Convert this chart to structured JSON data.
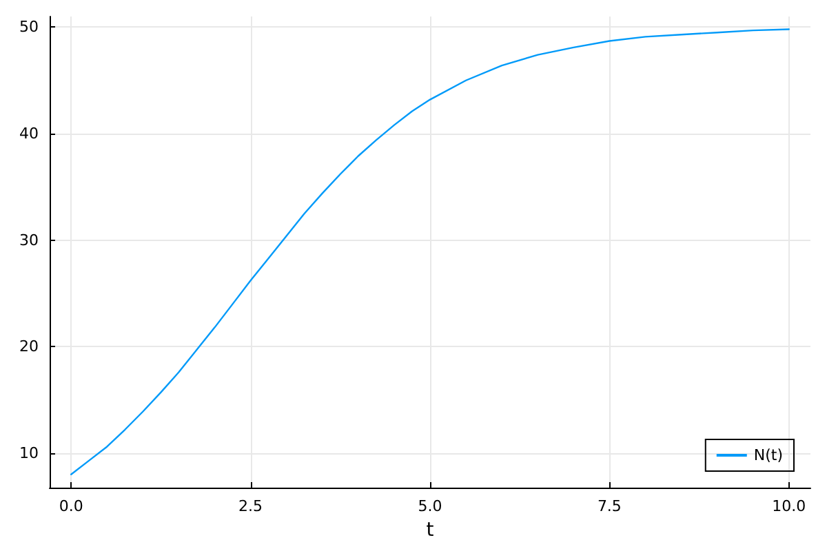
{
  "chart_data": {
    "type": "line",
    "xlabel": "t",
    "series": [
      {
        "name": "N(t)",
        "color": "#009af9",
        "x": [
          0,
          0.25,
          0.5,
          0.75,
          1,
          1.25,
          1.5,
          1.75,
          2,
          2.25,
          2.5,
          2.75,
          3,
          3.25,
          3.5,
          3.75,
          4,
          4.25,
          4.5,
          4.75,
          5,
          5.5,
          6,
          6.5,
          7,
          7.5,
          8,
          8.5,
          9,
          9.5,
          10
        ],
        "values": [
          8.0,
          9.3,
          10.6,
          12.2,
          13.9,
          15.7,
          17.6,
          19.7,
          21.8,
          24.0,
          26.2,
          28.3,
          30.4,
          32.5,
          34.4,
          36.2,
          37.9,
          39.4,
          40.8,
          42.1,
          43.2,
          45.0,
          46.4,
          47.4,
          48.1,
          48.7,
          49.1,
          49.3,
          49.5,
          49.7,
          49.8
        ]
      }
    ],
    "xlim": [
      -0.3,
      10.3
    ],
    "ylim": [
      6.75,
      51
    ],
    "xticks": [
      {
        "value": 0,
        "label": "0.0"
      },
      {
        "value": 2.5,
        "label": "2.5"
      },
      {
        "value": 5,
        "label": "5.0"
      },
      {
        "value": 7.5,
        "label": "7.5"
      },
      {
        "value": 10,
        "label": "10.0"
      }
    ],
    "yticks": [
      10,
      20,
      30,
      40,
      50
    ],
    "grid": true,
    "legend": "bottom right",
    "marker": "none",
    "line_style": "solid"
  }
}
